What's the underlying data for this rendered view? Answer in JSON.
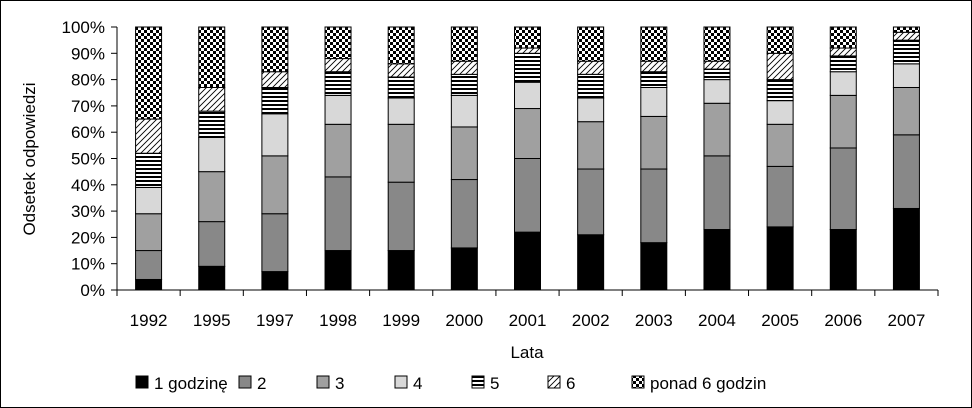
{
  "chart_data": {
    "type": "bar",
    "stacked": true,
    "title": "",
    "xlabel": "Lata",
    "ylabel": "Odsetek odpowiedzi",
    "ylim": [
      0,
      100
    ],
    "yticks": [
      "0%",
      "10%",
      "20%",
      "30%",
      "40%",
      "50%",
      "60%",
      "70%",
      "80%",
      "90%",
      "100%"
    ],
    "grid": false,
    "legend_position": "bottom",
    "categories": [
      "1992",
      "1995",
      "1997",
      "1998",
      "1999",
      "2000",
      "2001",
      "2002",
      "2003",
      "2004",
      "2005",
      "2006",
      "2007"
    ],
    "series": [
      {
        "name": "1 godzinę",
        "color": "#000000",
        "pattern": "solid",
        "values": [
          4,
          9,
          7,
          15,
          15,
          16,
          22,
          21,
          18,
          23,
          24,
          23,
          31
        ]
      },
      {
        "name": "2",
        "color": "#888888",
        "pattern": "solid",
        "values": [
          11,
          17,
          22,
          28,
          26,
          26,
          28,
          25,
          28,
          28,
          23,
          31,
          28
        ]
      },
      {
        "name": "3",
        "color": "#a0a0a0",
        "pattern": "solid",
        "values": [
          14,
          19,
          22,
          20,
          22,
          20,
          19,
          18,
          20,
          20,
          16,
          20,
          18
        ]
      },
      {
        "name": "4",
        "color": "#d8d8d8",
        "pattern": "solid",
        "values": [
          10,
          13,
          16,
          11,
          10,
          12,
          10,
          9,
          11,
          9,
          9,
          9,
          9
        ]
      },
      {
        "name": "5",
        "color": "#000000",
        "pattern": "horizontal-stripes",
        "values": [
          13,
          10,
          10,
          9,
          8,
          8,
          11,
          9,
          6,
          4,
          8,
          6,
          9
        ]
      },
      {
        "name": "6",
        "color": "#000000",
        "pattern": "diagonal-hatch",
        "values": [
          13,
          9,
          6,
          5,
          5,
          5,
          2,
          5,
          4,
          3,
          10,
          3,
          3
        ]
      },
      {
        "name": "ponad 6 godzin",
        "color": "#000000",
        "pattern": "checker",
        "values": [
          35,
          23,
          17,
          12,
          14,
          13,
          8,
          13,
          13,
          13,
          10,
          8,
          2
        ]
      }
    ]
  }
}
